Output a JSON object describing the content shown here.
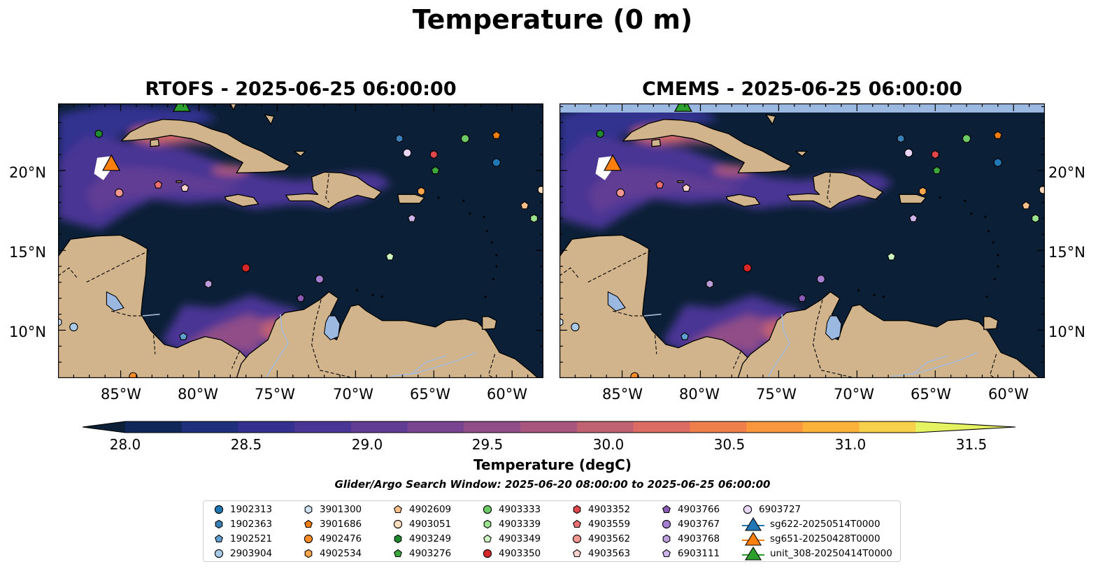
{
  "suptitle": "Temperature (0 m)",
  "panels": [
    {
      "title": "RTOFS - 2025-06-25 06:00:00",
      "has_top_band": false
    },
    {
      "title": "CMEMS - 2025-06-25 06:00:00",
      "has_top_band": true
    }
  ],
  "lon_ticks": [
    "85°W",
    "80°W",
    "75°W",
    "70°W",
    "65°W",
    "60°W"
  ],
  "lat_ticks": [
    "20°N",
    "15°N",
    "10°N"
  ],
  "colorbar": {
    "title": "Temperature (degC)",
    "tick_labels": [
      "28.0",
      "28.5",
      "29.0",
      "29.5",
      "30.0",
      "30.5",
      "31.0",
      "31.5"
    ],
    "range": [
      28.0,
      31.5
    ],
    "colors": [
      "#0b2036",
      "#10275a",
      "#1f2f7c",
      "#33308f",
      "#4a3694",
      "#623d94",
      "#7a4590",
      "#904d87",
      "#a8567d",
      "#c16172",
      "#db6c64",
      "#ef7e4d",
      "#f8973d",
      "#fbb13a",
      "#f8d14b",
      "#e5f262"
    ]
  },
  "search_window": "Glider/Argo Search Window: 2025-06-20 08:00:00 to 2025-06-25 06:00:00",
  "legend": [
    {
      "label": "1902313",
      "marker": "circle",
      "color": "#1f77b4"
    },
    {
      "label": "1902363",
      "marker": "hexagon",
      "color": "#3a7fb6"
    },
    {
      "label": "1902521",
      "marker": "pentagon",
      "color": "#5f9fd0"
    },
    {
      "label": "2903904",
      "marker": "circle",
      "color": "#a9cbe8"
    },
    {
      "label": "3901300",
      "marker": "hexagon",
      "color": "#cfe3f5"
    },
    {
      "label": "3901686",
      "marker": "pentagon",
      "color": "#f07d0e"
    },
    {
      "label": "4902476",
      "marker": "circle",
      "color": "#ff8b25"
    },
    {
      "label": "4902534",
      "marker": "hexagon",
      "color": "#ffa64d"
    },
    {
      "label": "4902609",
      "marker": "pentagon",
      "color": "#ffc08a"
    },
    {
      "label": "4903051",
      "marker": "circle",
      "color": "#ffdcbd"
    },
    {
      "label": "4903249",
      "marker": "hexagon",
      "color": "#1e8b2e"
    },
    {
      "label": "4903276",
      "marker": "pentagon",
      "color": "#3ca83c"
    },
    {
      "label": "4903333",
      "marker": "circle",
      "color": "#6cc965"
    },
    {
      "label": "4903339",
      "marker": "hexagon",
      "color": "#9be28e"
    },
    {
      "label": "4903349",
      "marker": "pentagon",
      "color": "#cdf5c2"
    },
    {
      "label": "4903350",
      "marker": "circle",
      "color": "#d62728"
    },
    {
      "label": "4903352",
      "marker": "hexagon",
      "color": "#e0464a"
    },
    {
      "label": "4903559",
      "marker": "pentagon",
      "color": "#ee6f72"
    },
    {
      "label": "4903562",
      "marker": "circle",
      "color": "#f29792"
    },
    {
      "label": "4903563",
      "marker": "pentagon",
      "color": "#fcd2d0"
    },
    {
      "label": "4903766",
      "marker": "pentagon",
      "color": "#8a5bb5"
    },
    {
      "label": "4903767",
      "marker": "circle",
      "color": "#a57ed0"
    },
    {
      "label": "4903768",
      "marker": "hexagon",
      "color": "#bc9ddc"
    },
    {
      "label": "6903111",
      "marker": "pentagon",
      "color": "#cfb4ec"
    },
    {
      "label": "6903727",
      "marker": "circle",
      "color": "#ead6f7"
    },
    {
      "label": "sg622-20250514T0000",
      "marker": "triangle",
      "color": "#1f77b4"
    },
    {
      "label": "sg651-20250428T0000",
      "marker": "triangle",
      "color": "#ff7f0e"
    },
    {
      "label": "unit_308-20250414T0000",
      "marker": "triangle",
      "color": "#2ca02c"
    }
  ],
  "map_extent": {
    "lon": [
      -89,
      -58
    ],
    "lat": [
      7,
      24.2
    ]
  },
  "observations": [
    {
      "id": "1902313",
      "lon": -61.0,
      "lat": 20.5
    },
    {
      "id": "1902363",
      "lon": -67.2,
      "lat": 22.0
    },
    {
      "id": "1902521",
      "lon": -81.0,
      "lat": 9.6
    },
    {
      "id": "2903904",
      "lon": -88.0,
      "lat": 10.2
    },
    {
      "id": "3901300",
      "lon": -89.0,
      "lat": 10.5
    },
    {
      "id": "3901686",
      "lon": -61.0,
      "lat": 22.2
    },
    {
      "id": "4902476",
      "lon": -84.2,
      "lat": 7.1
    },
    {
      "id": "4902534",
      "lon": -65.8,
      "lat": 18.7
    },
    {
      "id": "4902609",
      "lon": -59.2,
      "lat": 17.8
    },
    {
      "id": "4903051",
      "lon": -58.1,
      "lat": 18.8
    },
    {
      "id": "4903249",
      "lon": -86.4,
      "lat": 22.3
    },
    {
      "id": "4903276",
      "lon": -64.9,
      "lat": 20.0
    },
    {
      "id": "4903333",
      "lon": -63.0,
      "lat": 22.0
    },
    {
      "id": "4903339",
      "lon": -58.6,
      "lat": 17.0
    },
    {
      "id": "4903349",
      "lon": -67.8,
      "lat": 14.6
    },
    {
      "id": "4903350",
      "lon": -77.0,
      "lat": 13.9
    },
    {
      "id": "4903352",
      "lon": -65.0,
      "lat": 21.0
    },
    {
      "id": "4903559",
      "lon": -82.6,
      "lat": 19.1
    },
    {
      "id": "4903562",
      "lon": -85.1,
      "lat": 18.6
    },
    {
      "id": "4903563",
      "lon": -80.9,
      "lat": 18.9
    },
    {
      "id": "4903766",
      "lon": -73.5,
      "lat": 12.0
    },
    {
      "id": "4903767",
      "lon": -72.3,
      "lat": 13.2
    },
    {
      "id": "4903768",
      "lon": -79.4,
      "lat": 12.9
    },
    {
      "id": "6903111",
      "lon": -66.4,
      "lat": 17.0
    },
    {
      "id": "6903727",
      "lon": -66.7,
      "lat": 21.1
    }
  ],
  "gliders": [
    {
      "id": "sg651-20250428T0000",
      "lon": -85.6,
      "lat": 20.4
    },
    {
      "id": "unit_308-20250414T0000",
      "lon": -81.1,
      "lat": 24.1
    }
  ]
}
